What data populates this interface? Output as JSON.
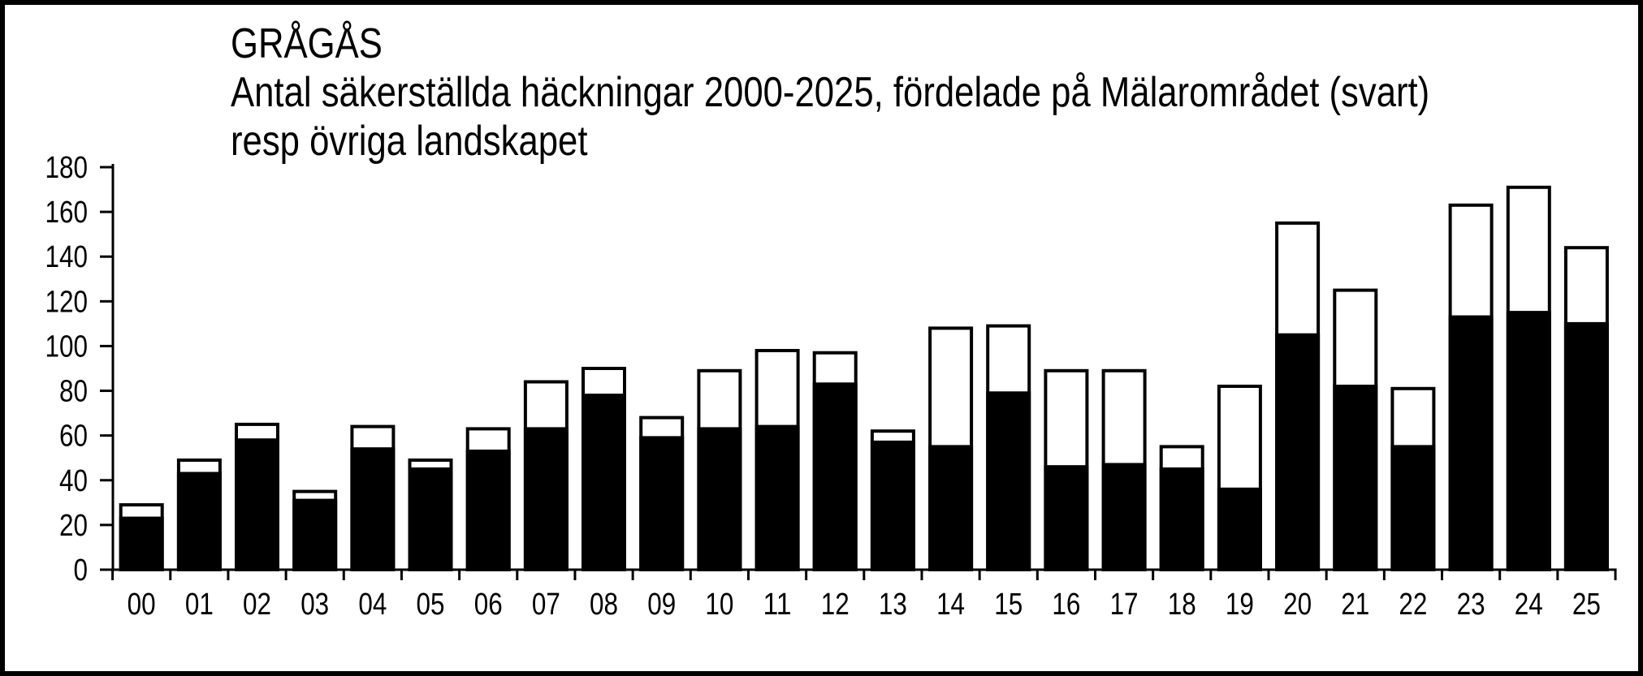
{
  "title": {
    "line1": "GRÅGÅS",
    "line2": "Antal säkerställda häckningar 2000-2025, fördelade på Mälarområdet (svart)",
    "line3": "resp övriga landskapet"
  },
  "colors": {
    "bar_fill_malaromradet": "#000000",
    "bar_fill_ovriga": "#ffffff",
    "bar_outline": "#000000",
    "axis": "#000000",
    "background": "#ffffff",
    "frame_border": "#000000"
  },
  "chart_data": {
    "type": "bar",
    "stacked": true,
    "title": "GRÅGÅS",
    "subtitle": "Antal säkerställda häckningar 2000-2025, fördelade på Mälarområdet (svart) resp övriga landskapet",
    "categories": [
      "00",
      "01",
      "02",
      "03",
      "04",
      "05",
      "06",
      "07",
      "08",
      "09",
      "10",
      "11",
      "12",
      "13",
      "14",
      "15",
      "16",
      "17",
      "18",
      "19",
      "20",
      "21",
      "22",
      "23",
      "24",
      "25"
    ],
    "series": [
      {
        "name": "Mälarområdet",
        "color": "#000000",
        "values": [
          23,
          43,
          58,
          31,
          54,
          45,
          53,
          63,
          78,
          59,
          63,
          64,
          83,
          57,
          55,
          79,
          46,
          47,
          45,
          36,
          105,
          82,
          55,
          113,
          115,
          110
        ]
      },
      {
        "name": "övriga landskapet",
        "color": "#ffffff",
        "values": [
          6,
          6,
          7,
          4,
          10,
          4,
          10,
          21,
          12,
          9,
          26,
          34,
          14,
          5,
          53,
          30,
          43,
          42,
          10,
          46,
          50,
          43,
          26,
          50,
          56,
          34
        ]
      }
    ],
    "totals": [
      29,
      49,
      65,
      35,
      64,
      49,
      63,
      84,
      90,
      68,
      89,
      98,
      97,
      62,
      108,
      109,
      89,
      89,
      55,
      82,
      155,
      125,
      81,
      163,
      171,
      144
    ],
    "xlabel": "",
    "ylabel": "",
    "ylim": [
      0,
      180
    ],
    "yticks": [
      0,
      20,
      40,
      60,
      80,
      100,
      120,
      140,
      160,
      180
    ],
    "grid": false,
    "legend_position": "none"
  }
}
